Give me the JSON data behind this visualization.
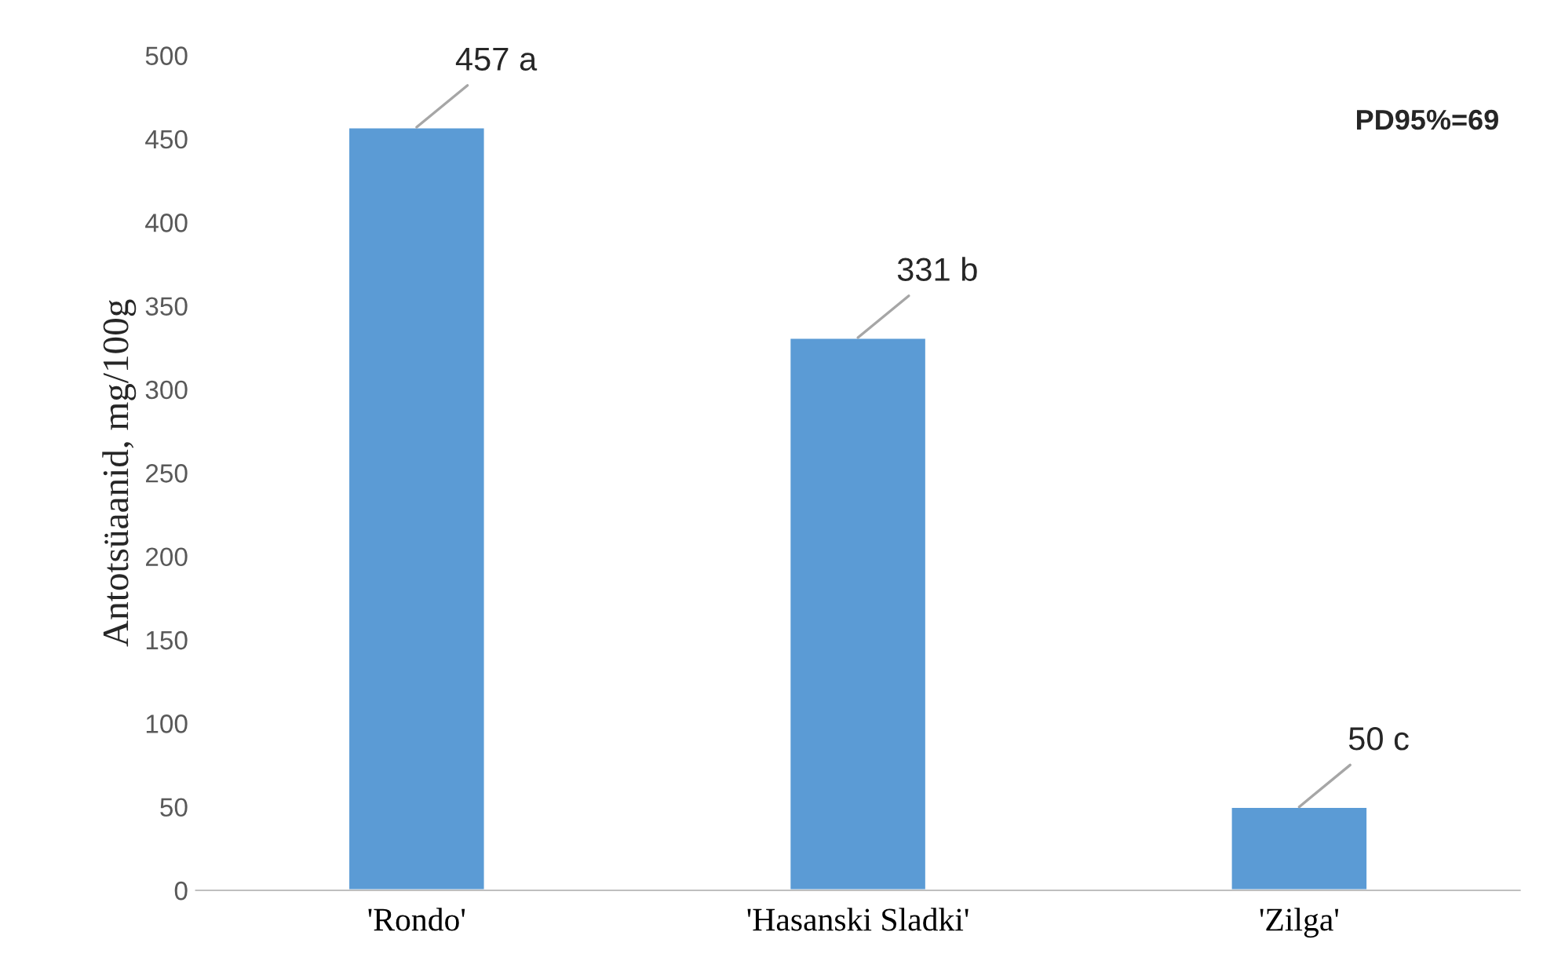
{
  "chart_data": {
    "type": "bar",
    "ylabel": "Antotsüaanid, mg/100g",
    "categories": [
      "'Rondo'",
      "'Hasanski Sladki'",
      "'Zilga'"
    ],
    "values": [
      457,
      331,
      50
    ],
    "value_labels": [
      "457 a",
      "331 b",
      "50 c"
    ],
    "color": "#5b9bd5",
    "ylim": [
      0,
      500
    ],
    "yticks": [
      0,
      50,
      100,
      150,
      200,
      250,
      300,
      350,
      400,
      450,
      500
    ],
    "grid": false,
    "annotations": [
      "PD95%=69"
    ]
  }
}
